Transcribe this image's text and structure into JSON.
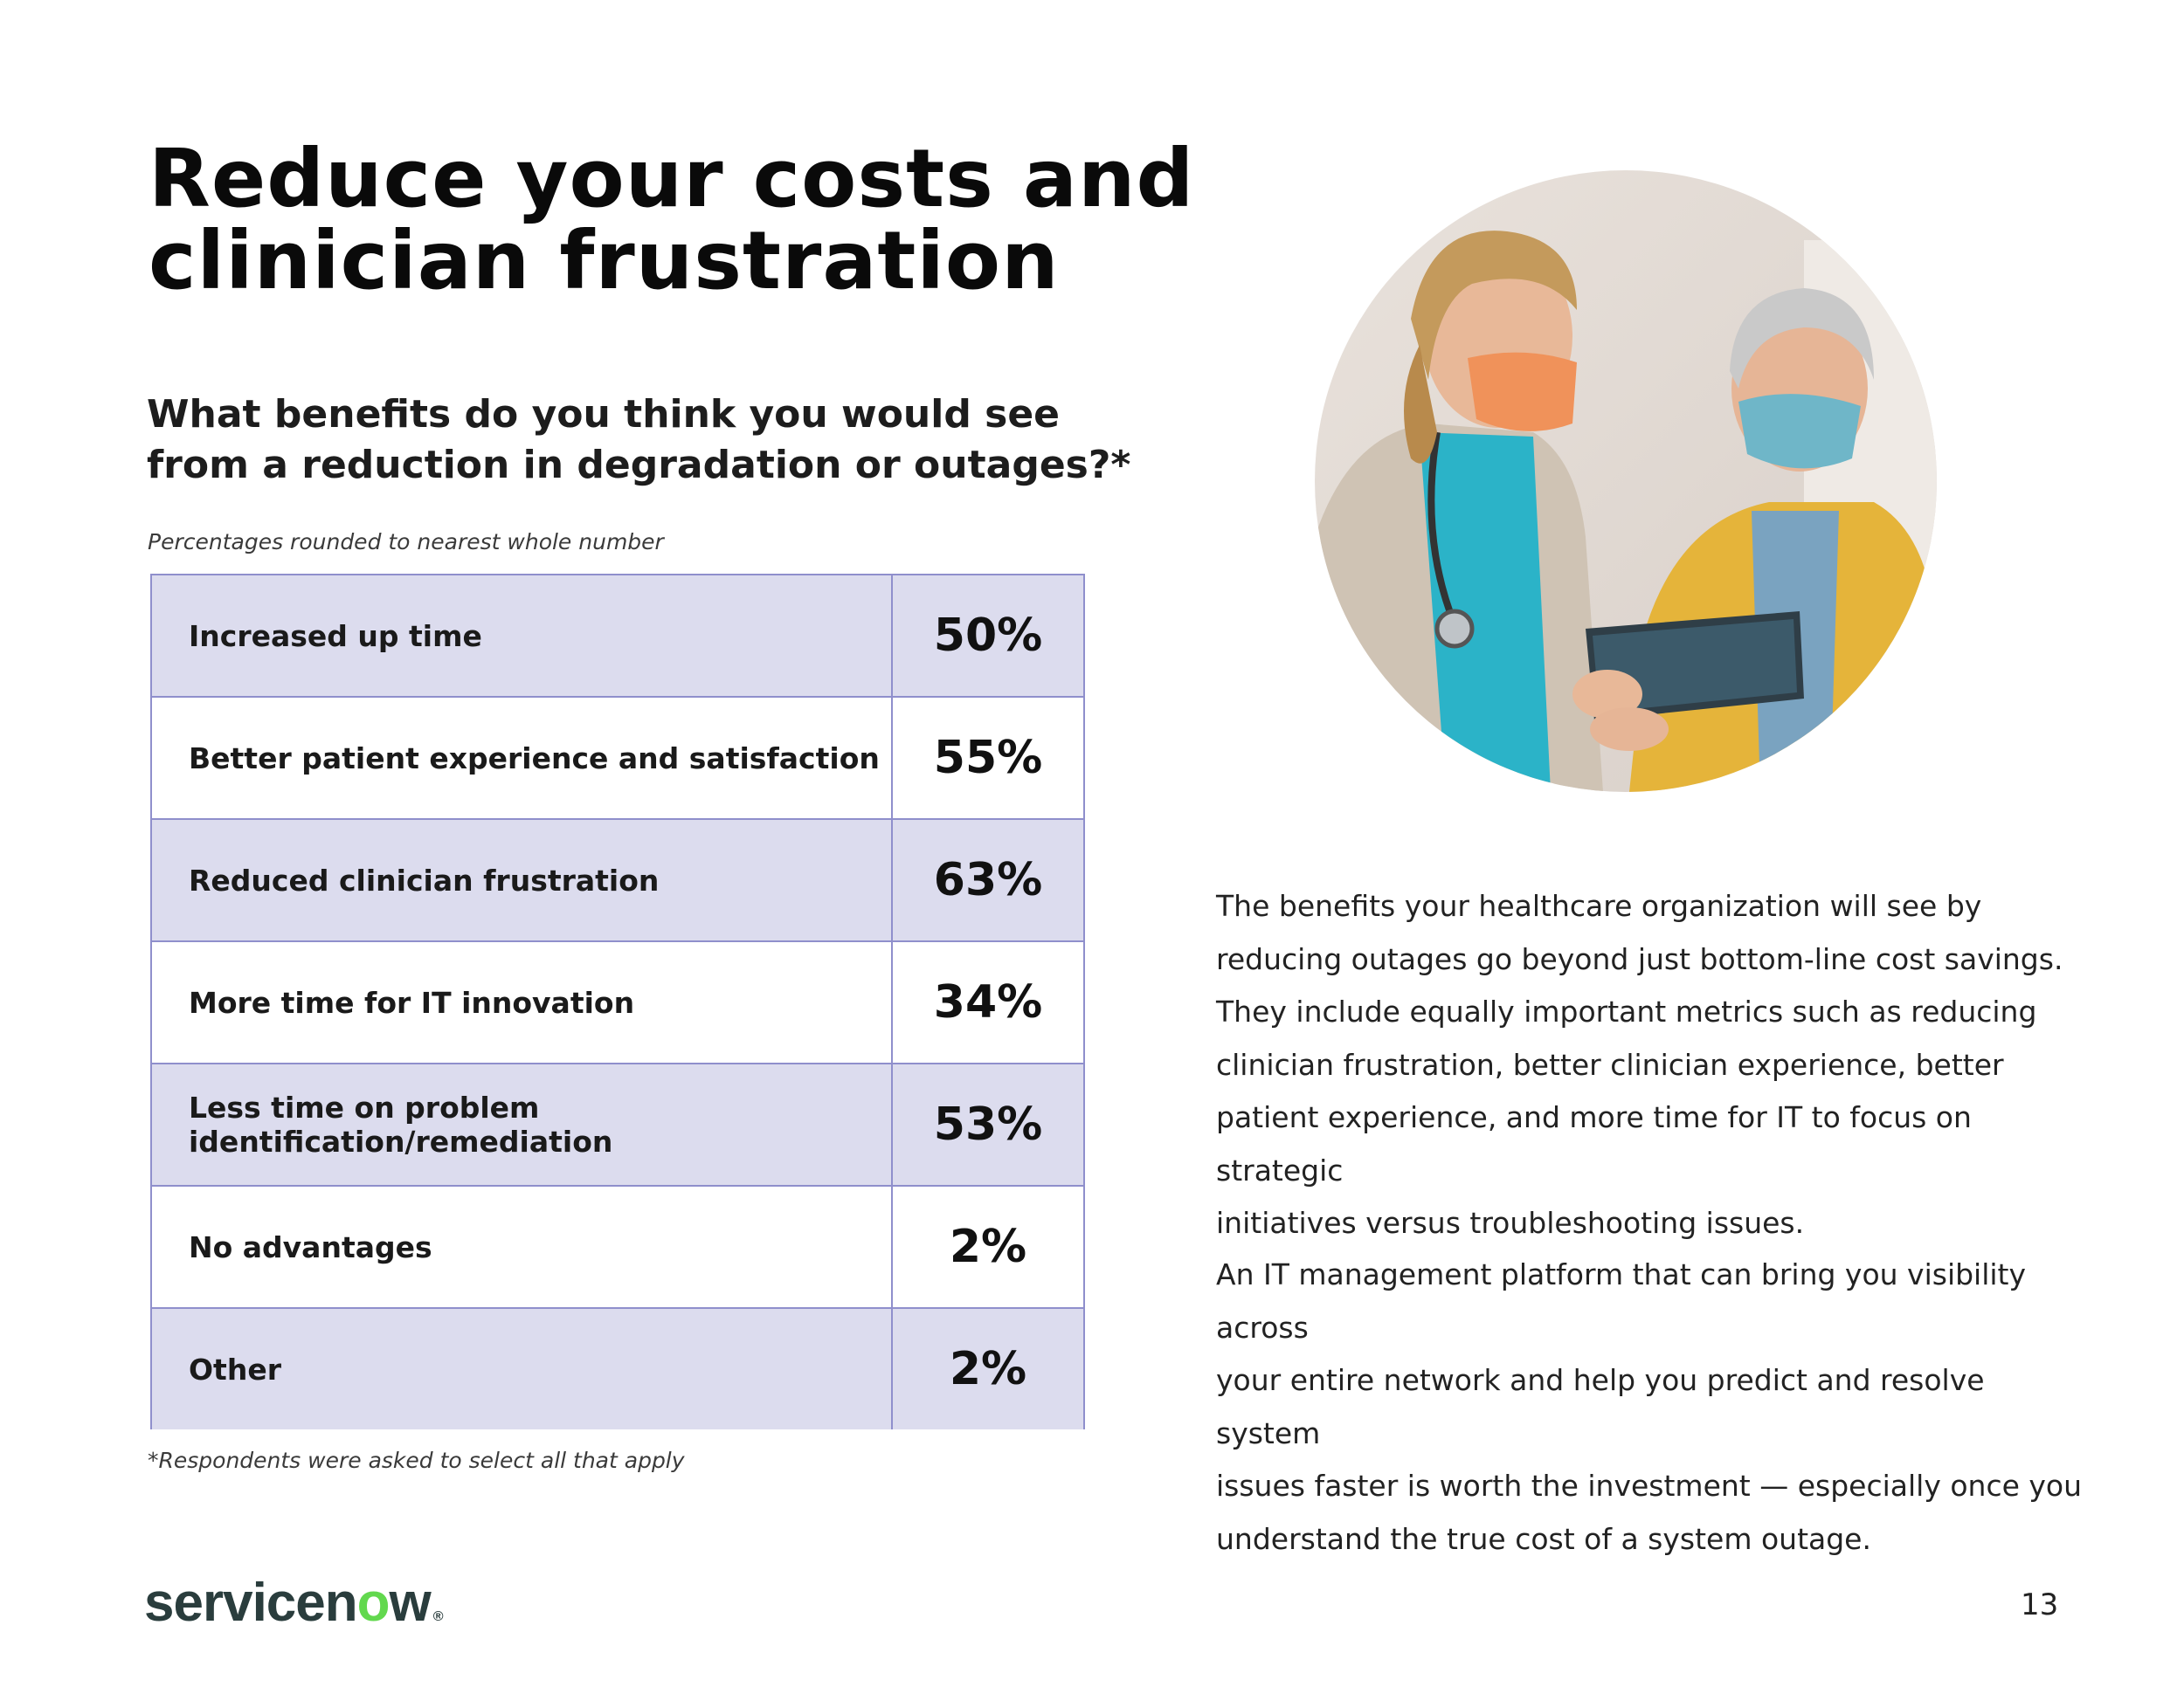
{
  "page": {
    "title_line1": "Reduce your costs and",
    "title_line2": "clinician frustration",
    "question_line1": "What benefits do you think you would see",
    "question_line2": "from a reduction in degradation or outages?*",
    "note": "Percentages rounded to nearest whole number",
    "footnote": "*Respondents were asked to select all that apply",
    "page_number": "13"
  },
  "table": {
    "rows": [
      {
        "label": "Increased up time",
        "value": "50%"
      },
      {
        "label": "Better patient experience and satisfaction",
        "value": "55%"
      },
      {
        "label": "Reduced clinician frustration",
        "value": "63%"
      },
      {
        "label": "More time for IT innovation",
        "value": "34%"
      },
      {
        "label": "Less time on problem identification/remediation",
        "value": "53%"
      },
      {
        "label": "No advantages",
        "value": "2%"
      },
      {
        "label": "Other",
        "value": "2%"
      }
    ]
  },
  "body": {
    "paragraph1_lines": [
      "The benefits your healthcare organization will see by",
      "reducing outages go beyond just bottom-line cost savings.",
      "They include equally important metrics such as reducing",
      "clinician frustration, better clinician experience, better",
      "patient experience, and more time for IT to focus on strategic",
      "initiatives versus troubleshooting issues."
    ],
    "paragraph2_lines": [
      "An IT management platform that can bring you visibility across",
      "your entire network and help you predict and resolve system",
      "issues faster is worth the investment — especially once you",
      "understand the true cost of a system outage."
    ]
  },
  "logo": {
    "text_before": "servicen",
    "text_o": "o",
    "text_after": "w",
    "brand_color": "#2a3d3d",
    "accent_color": "#62d84e"
  },
  "colors": {
    "table_shade": "#dcdcee",
    "table_border": "#8f8fcc"
  },
  "photo": {
    "icon": "nurse-and-patient-photo"
  }
}
